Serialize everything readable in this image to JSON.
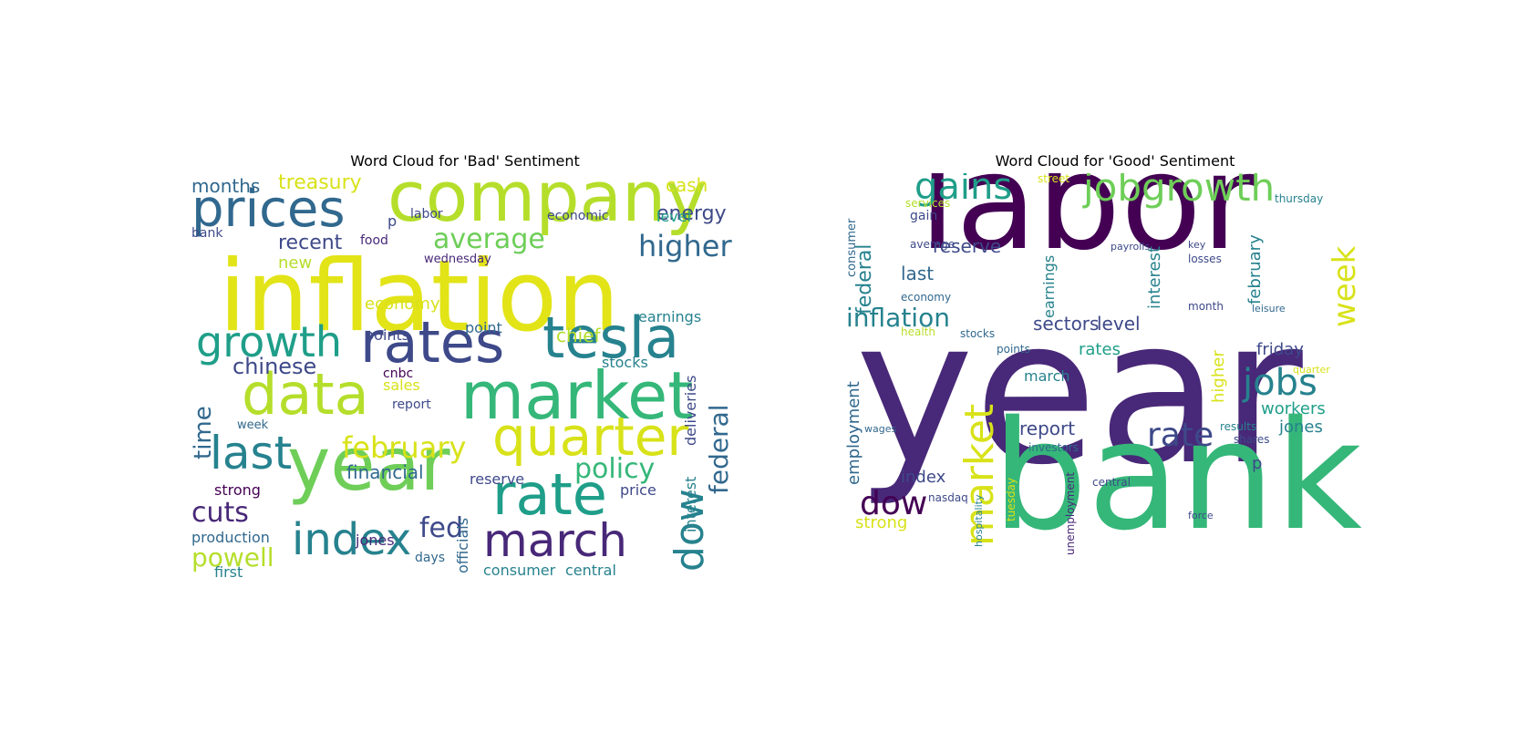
{
  "palette": [
    "#440154",
    "#482878",
    "#3e4989",
    "#31688e",
    "#26828e",
    "#1f9e89",
    "#35b779",
    "#6ece58",
    "#b5de2b",
    "#fde725"
  ],
  "chart_data": [
    {
      "type": "wordcloud",
      "title": "Word Cloud for 'Bad' Sentiment",
      "words": [
        {
          "text": "inflation",
          "weight": 100,
          "color": "#e2e418"
        },
        {
          "text": "company",
          "weight": 78,
          "color": "#b5de2b"
        },
        {
          "text": "year",
          "weight": 72,
          "color": "#6ece58"
        },
        {
          "text": "market",
          "weight": 68,
          "color": "#35b779"
        },
        {
          "text": "rates",
          "weight": 62,
          "color": "#3e4989"
        },
        {
          "text": "quarter",
          "weight": 60,
          "color": "#d8e219"
        },
        {
          "text": "rate",
          "weight": 60,
          "color": "#1f9e89"
        },
        {
          "text": "data",
          "weight": 58,
          "color": "#b5de2b"
        },
        {
          "text": "tesla",
          "weight": 58,
          "color": "#26828e"
        },
        {
          "text": "prices",
          "weight": 56,
          "color": "#31688e"
        },
        {
          "text": "march",
          "weight": 52,
          "color": "#482878"
        },
        {
          "text": "last",
          "weight": 50,
          "color": "#26828e"
        },
        {
          "text": "index",
          "weight": 48,
          "color": "#26828e"
        },
        {
          "text": "growth",
          "weight": 46,
          "color": "#1f9e89"
        },
        {
          "text": "dow",
          "weight": 44,
          "color": "#26828e"
        },
        {
          "text": "higher",
          "weight": 34,
          "color": "#31688e"
        },
        {
          "text": "average",
          "weight": 32,
          "color": "#6ece58"
        },
        {
          "text": "policy",
          "weight": 32,
          "color": "#35b779"
        },
        {
          "text": "february",
          "weight": 32,
          "color": "#d8e219"
        },
        {
          "text": "cuts",
          "weight": 30,
          "color": "#482878"
        },
        {
          "text": "fed",
          "weight": 30,
          "color": "#3e4989"
        },
        {
          "text": "federal",
          "weight": 30,
          "color": "#31688e"
        },
        {
          "text": "powell",
          "weight": 28,
          "color": "#b5de2b"
        },
        {
          "text": "time",
          "weight": 26,
          "color": "#31688e"
        },
        {
          "text": "chinese",
          "weight": 26,
          "color": "#3e4989"
        },
        {
          "text": "recent",
          "weight": 24,
          "color": "#3e4989"
        },
        {
          "text": "energy",
          "weight": 24,
          "color": "#3e4989"
        },
        {
          "text": "treasury",
          "weight": 24,
          "color": "#d8e219"
        },
        {
          "text": "months",
          "weight": 22,
          "color": "#31688e"
        },
        {
          "text": "financial",
          "weight": 20,
          "color": "#31688e"
        },
        {
          "text": "chief",
          "weight": 22,
          "color": "#b5de2b"
        },
        {
          "text": "cash",
          "weight": 20,
          "color": "#d8e219"
        },
        {
          "text": "reserve",
          "weight": 18,
          "color": "#3e4989"
        },
        {
          "text": "new",
          "weight": 20,
          "color": "#b5de2b"
        },
        {
          "text": "economy",
          "weight": 20,
          "color": "#d8e219"
        },
        {
          "text": "points",
          "weight": 18,
          "color": "#3e4989"
        },
        {
          "text": "point",
          "weight": 18,
          "color": "#31688e"
        },
        {
          "text": "deliveries",
          "weight": 18,
          "color": "#3e4989"
        },
        {
          "text": "interest",
          "weight": 18,
          "color": "#26828e"
        },
        {
          "text": "production",
          "weight": 18,
          "color": "#31688e"
        },
        {
          "text": "strong",
          "weight": 16,
          "color": "#440154"
        },
        {
          "text": "jones",
          "weight": 16,
          "color": "#482878"
        },
        {
          "text": "consumer",
          "weight": 16,
          "color": "#26828e"
        },
        {
          "text": "central",
          "weight": 16,
          "color": "#26828e"
        },
        {
          "text": "officials",
          "weight": 16,
          "color": "#31688e"
        },
        {
          "text": "sales",
          "weight": 16,
          "color": "#d8e219"
        },
        {
          "text": "stocks",
          "weight": 16,
          "color": "#26828e"
        },
        {
          "text": "earnings",
          "weight": 16,
          "color": "#26828e"
        },
        {
          "text": "level",
          "weight": 16,
          "color": "#1f9e89"
        },
        {
          "text": "price",
          "weight": 16,
          "color": "#3e4989"
        },
        {
          "text": "first",
          "weight": 16,
          "color": "#26828e"
        },
        {
          "text": "days",
          "weight": 14,
          "color": "#31688e"
        },
        {
          "text": "economic",
          "weight": 14,
          "color": "#3e4989"
        },
        {
          "text": "labor",
          "weight": 14,
          "color": "#3e4989"
        },
        {
          "text": "food",
          "weight": 14,
          "color": "#482878"
        },
        {
          "text": "wednesday",
          "weight": 13,
          "color": "#482878"
        },
        {
          "text": "cnbc",
          "weight": 14,
          "color": "#440154"
        },
        {
          "text": "report",
          "weight": 14,
          "color": "#3e4989"
        },
        {
          "text": "bank",
          "weight": 14,
          "color": "#3e4989"
        },
        {
          "text": "week",
          "weight": 13,
          "color": "#31688e"
        },
        {
          "text": "p",
          "weight": 16,
          "color": "#3e4989"
        }
      ]
    },
    {
      "type": "wordcloud",
      "title": "Word Cloud for 'Good' Sentiment",
      "words": [
        {
          "text": "labor",
          "weight": 100,
          "color": "#440154"
        },
        {
          "text": "year",
          "weight": 100,
          "color": "#482878"
        },
        {
          "text": "bank",
          "weight": 82,
          "color": "#35b779"
        },
        {
          "text": "market",
          "weight": 44,
          "color": "#d8e219"
        },
        {
          "text": "jobgrowth",
          "weight": 42,
          "color": "#6ece58"
        },
        {
          "text": "jobs",
          "weight": 40,
          "color": "#26828e"
        },
        {
          "text": "gains",
          "weight": 40,
          "color": "#1f9e89"
        },
        {
          "text": "dow",
          "weight": 36,
          "color": "#440154"
        },
        {
          "text": "rate",
          "weight": 36,
          "color": "#3e4989"
        },
        {
          "text": "week",
          "weight": 34,
          "color": "#d8e219"
        },
        {
          "text": "inflation",
          "weight": 28,
          "color": "#26828e"
        },
        {
          "text": "federal",
          "weight": 22,
          "color": "#26828e"
        },
        {
          "text": "reserve",
          "weight": 20,
          "color": "#3e4989"
        },
        {
          "text": "last",
          "weight": 20,
          "color": "#31688e"
        },
        {
          "text": "sectors",
          "weight": 20,
          "color": "#3e4989"
        },
        {
          "text": "level",
          "weight": 20,
          "color": "#3e4989"
        },
        {
          "text": "report",
          "weight": 20,
          "color": "#3e4989"
        },
        {
          "text": "rates",
          "weight": 18,
          "color": "#1f9e89"
        },
        {
          "text": "february",
          "weight": 18,
          "color": "#26828e"
        },
        {
          "text": "higher",
          "weight": 18,
          "color": "#d8e219"
        },
        {
          "text": "interest",
          "weight": 18,
          "color": "#26828e"
        },
        {
          "text": "friday",
          "weight": 18,
          "color": "#3e4989"
        },
        {
          "text": "workers",
          "weight": 18,
          "color": "#1f9e89"
        },
        {
          "text": "jones",
          "weight": 18,
          "color": "#26828e"
        },
        {
          "text": "employment",
          "weight": 18,
          "color": "#31688e"
        },
        {
          "text": "index",
          "weight": 18,
          "color": "#3e4989"
        },
        {
          "text": "strong",
          "weight": 18,
          "color": "#d8e219"
        },
        {
          "text": "march",
          "weight": 16,
          "color": "#26828e"
        },
        {
          "text": "earnings",
          "weight": 16,
          "color": "#26828e"
        },
        {
          "text": "gain",
          "weight": 14,
          "color": "#3e4989"
        },
        {
          "text": "consumer",
          "weight": 13,
          "color": "#31688e"
        },
        {
          "text": "p",
          "weight": 18,
          "color": "#3e4989"
        },
        {
          "text": "economy",
          "weight": 12,
          "color": "#31688e"
        },
        {
          "text": "average",
          "weight": 12,
          "color": "#3e4989"
        },
        {
          "text": "thursday",
          "weight": 12,
          "color": "#26828e"
        },
        {
          "text": "losses",
          "weight": 12,
          "color": "#3e4989"
        },
        {
          "text": "month",
          "weight": 12,
          "color": "#3e4989"
        },
        {
          "text": "investors",
          "weight": 12,
          "color": "#31688e"
        },
        {
          "text": "shares",
          "weight": 12,
          "color": "#3e4989"
        },
        {
          "text": "results",
          "weight": 12,
          "color": "#26828e"
        },
        {
          "text": "stocks",
          "weight": 12,
          "color": "#31688e"
        },
        {
          "text": "points",
          "weight": 12,
          "color": "#31688e"
        },
        {
          "text": "nasdaq",
          "weight": 12,
          "color": "#3e4989"
        },
        {
          "text": "tuesday",
          "weight": 12,
          "color": "#d8e219"
        },
        {
          "text": "unemployment",
          "weight": 12,
          "color": "#482878"
        },
        {
          "text": "central",
          "weight": 12,
          "color": "#3e4989"
        },
        {
          "text": "street",
          "weight": 12,
          "color": "#d8e219"
        },
        {
          "text": "services",
          "weight": 12,
          "color": "#b5de2b"
        },
        {
          "text": "payrolls",
          "weight": 11,
          "color": "#3e4989"
        },
        {
          "text": "wages",
          "weight": 11,
          "color": "#31688e"
        },
        {
          "text": "key",
          "weight": 11,
          "color": "#3e4989"
        },
        {
          "text": "health",
          "weight": 12,
          "color": "#b5de2b"
        },
        {
          "text": "leisure",
          "weight": 11,
          "color": "#31688e"
        },
        {
          "text": "force",
          "weight": 11,
          "color": "#3e4989"
        },
        {
          "text": "quarter",
          "weight": 11,
          "color": "#d8e219"
        },
        {
          "text": "hospitality",
          "weight": 11,
          "color": "#26828e"
        }
      ]
    }
  ]
}
